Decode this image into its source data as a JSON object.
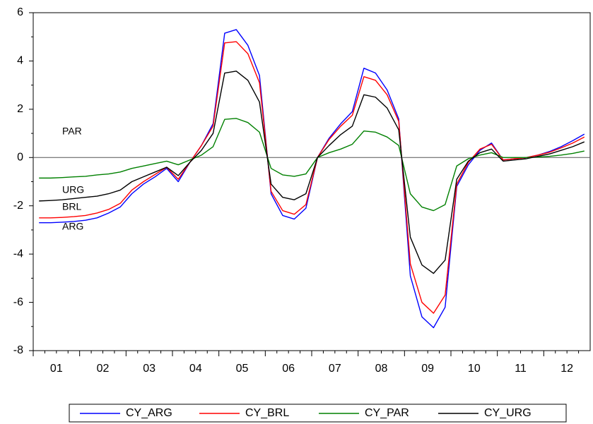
{
  "chart_data": {
    "type": "line",
    "categories": [
      "01",
      null,
      null,
      null,
      "02",
      null,
      null,
      null,
      "03",
      null,
      null,
      null,
      "04",
      null,
      null,
      null,
      "05",
      null,
      null,
      null,
      "06",
      null,
      null,
      null,
      "07",
      null,
      null,
      null,
      "08",
      null,
      null,
      null,
      "09",
      null,
      null,
      null,
      "10",
      null,
      null,
      null,
      "11",
      null,
      null,
      null,
      "12",
      null,
      null,
      null
    ],
    "series": [
      {
        "name": "CY_ARG",
        "color": "#0000ff",
        "values": [
          -2.7,
          -2.7,
          -2.68,
          -2.65,
          -2.6,
          -2.5,
          -2.3,
          -2.05,
          -1.5,
          -1.1,
          -0.8,
          -0.45,
          -1.0,
          -0.2,
          0.5,
          1.4,
          5.15,
          5.3,
          4.65,
          3.4,
          -1.5,
          -2.4,
          -2.55,
          -2.1,
          0.0,
          0.8,
          1.4,
          1.9,
          3.7,
          3.5,
          2.8,
          1.6,
          -4.9,
          -6.6,
          -7.05,
          -6.2,
          -1.2,
          -0.3,
          0.3,
          0.6,
          -0.1,
          -0.05,
          0.0,
          0.1,
          0.25,
          0.45,
          0.7,
          0.97
        ]
      },
      {
        "name": "CY_BRL",
        "color": "#ff0000",
        "values": [
          -2.5,
          -2.5,
          -2.48,
          -2.45,
          -2.4,
          -2.3,
          -2.15,
          -1.9,
          -1.35,
          -1.0,
          -0.7,
          -0.4,
          -0.9,
          -0.2,
          0.5,
          1.3,
          4.75,
          4.8,
          4.3,
          3.1,
          -1.4,
          -2.2,
          -2.35,
          -1.95,
          0.0,
          0.75,
          1.3,
          1.75,
          3.35,
          3.2,
          2.6,
          1.5,
          -4.4,
          -6.0,
          -6.45,
          -5.7,
          -1.1,
          -0.2,
          0.35,
          0.55,
          -0.1,
          -0.05,
          0.0,
          0.1,
          0.22,
          0.4,
          0.6,
          0.85
        ]
      },
      {
        "name": "CY_PAR",
        "color": "#008000",
        "values": [
          -0.85,
          -0.85,
          -0.83,
          -0.8,
          -0.78,
          -0.72,
          -0.68,
          -0.6,
          -0.45,
          -0.35,
          -0.25,
          -0.15,
          -0.3,
          -0.1,
          0.1,
          0.45,
          1.58,
          1.62,
          1.45,
          1.05,
          -0.45,
          -0.72,
          -0.78,
          -0.68,
          0.0,
          0.2,
          0.35,
          0.55,
          1.1,
          1.05,
          0.85,
          0.5,
          -1.5,
          -2.05,
          -2.2,
          -1.95,
          -0.35,
          -0.05,
          0.1,
          0.2,
          0.0,
          0.0,
          0.0,
          0.02,
          0.05,
          0.1,
          0.17,
          0.27
        ]
      },
      {
        "name": "CY_URG",
        "color": "#000000",
        "values": [
          -1.8,
          -1.78,
          -1.75,
          -1.7,
          -1.65,
          -1.6,
          -1.5,
          -1.35,
          -1.0,
          -0.8,
          -0.6,
          -0.4,
          -0.75,
          -0.2,
          0.3,
          1.0,
          3.5,
          3.58,
          3.2,
          2.3,
          -1.1,
          -1.65,
          -1.75,
          -1.5,
          0.0,
          0.5,
          0.95,
          1.3,
          2.6,
          2.5,
          2.05,
          1.15,
          -3.3,
          -4.45,
          -4.8,
          -4.25,
          -0.9,
          -0.15,
          0.2,
          0.35,
          -0.15,
          -0.1,
          -0.05,
          0.05,
          0.15,
          0.3,
          0.45,
          0.65
        ]
      }
    ],
    "annotations": [
      "PAR",
      "URG",
      "BRL",
      "ARG"
    ],
    "ylim": [
      -8,
      6
    ],
    "yticks": [
      -8,
      -6,
      -4,
      -2,
      0,
      2,
      4,
      6
    ],
    "zero_line": true,
    "legend": "bottom"
  }
}
